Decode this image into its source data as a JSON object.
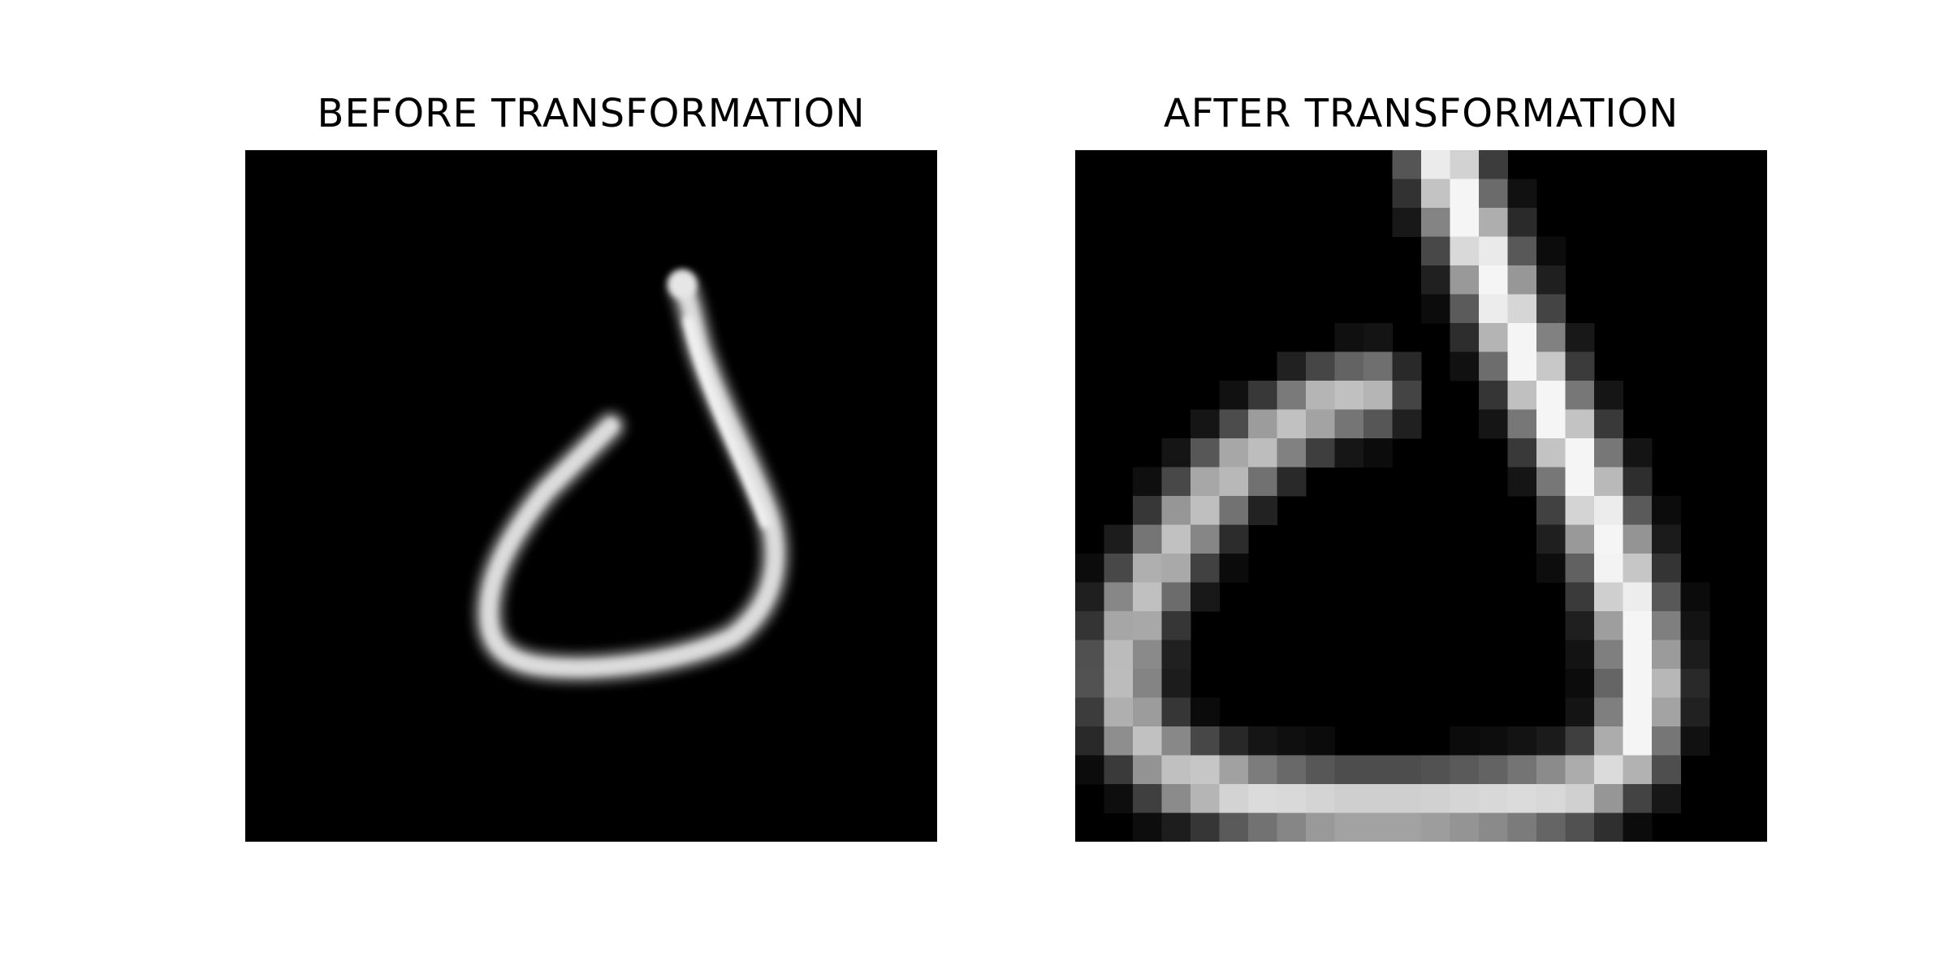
{
  "panels": {
    "before": {
      "title": "BEFORE TRANSFORMATION",
      "image": "handwritten-digit-grayscale-smooth",
      "background": "#000000"
    },
    "after": {
      "title": "AFTER TRANSFORMATION",
      "image": "handwritten-digit-grayscale-pixelated-zoomed",
      "background": "#000000"
    }
  }
}
